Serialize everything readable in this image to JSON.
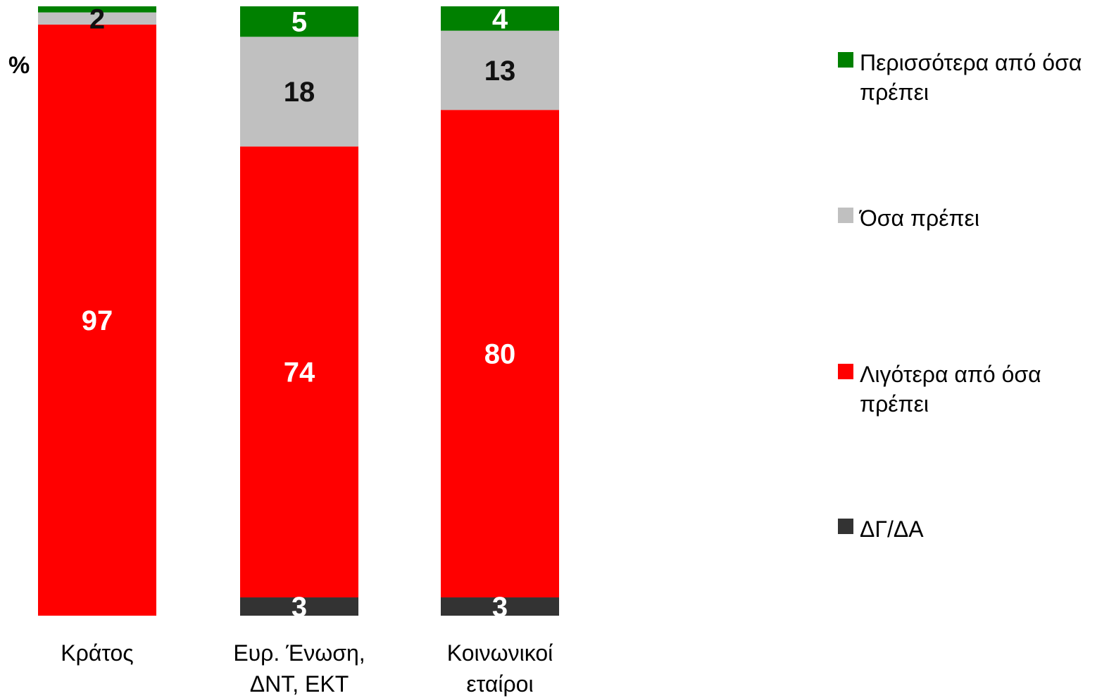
{
  "chart_data": {
    "type": "bar",
    "stacked": true,
    "orientation": "vertical",
    "unit_label": "%",
    "categories": [
      [
        "Κράτος"
      ],
      [
        "Ευρ. Ένωση,",
        "ΔΝΤ, ΕΚΤ"
      ],
      [
        "Κοινωνικοί",
        "εταίροι"
      ]
    ],
    "ylim": [
      0,
      100
    ],
    "grid": false,
    "legend_position": "right",
    "series": [
      {
        "name": "ΔΓ/ΔΑ",
        "color": "#333333",
        "label_color": "#ffffff",
        "values": [
          0,
          3,
          3
        ],
        "labels": [
          "",
          "3",
          "3"
        ]
      },
      {
        "name": "Λιγότερα από όσα πρέπει",
        "color": "#ff0000",
        "label_color": "#ffffff",
        "values": [
          97,
          74,
          80
        ],
        "labels": [
          "97",
          "74",
          "80"
        ]
      },
      {
        "name": "Όσα πρέπει",
        "color": "#c0c0c0",
        "label_color": "#111111",
        "values": [
          2,
          18,
          13
        ],
        "labels": [
          "2",
          "18",
          "13"
        ]
      },
      {
        "name": "Περισσότερα από όσα πρέπει",
        "color": "#008000",
        "label_color": "#ffffff",
        "values": [
          1,
          5,
          4
        ],
        "labels": [
          "",
          "5",
          "4"
        ]
      }
    ],
    "legend": [
      {
        "name": "Περισσότερα από όσα πρέπει",
        "color": "#008000"
      },
      {
        "name": "Όσα πρέπει",
        "color": "#c0c0c0"
      },
      {
        "name": "Λιγότερα από όσα πρέπει",
        "color": "#ff0000"
      },
      {
        "name": "ΔΓ/ΔΑ",
        "color": "#333333"
      }
    ]
  }
}
